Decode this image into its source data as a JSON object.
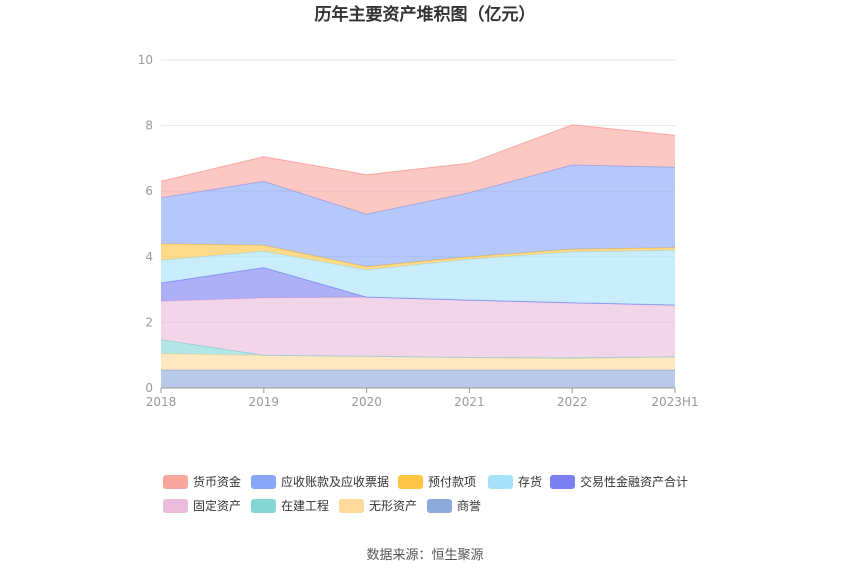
{
  "chart_data": {
    "type": "area",
    "stacked": true,
    "title": "历年主要资产堆积图（亿元）",
    "categories": [
      "2018",
      "2019",
      "2020",
      "2021",
      "2022",
      "2023H1"
    ],
    "ylim": [
      0,
      10
    ],
    "yticks": [
      "0",
      "2",
      "4",
      "6",
      "8",
      "10"
    ],
    "grid": true,
    "legend_position": "bottom",
    "series": [
      {
        "name": "商誉",
        "color": "#8eaadb",
        "values": [
          0.55,
          0.55,
          0.55,
          0.55,
          0.55,
          0.55
        ]
      },
      {
        "name": "无形资产",
        "color": "#fdd99b",
        "values": [
          0.5,
          0.45,
          0.42,
          0.38,
          0.35,
          0.4
        ]
      },
      {
        "name": "在建工程",
        "color": "#85d6d6",
        "values": [
          0.42,
          0.0,
          0.0,
          0.0,
          0.02,
          0.0
        ]
      },
      {
        "name": "固定资产",
        "color": "#ebbcdb",
        "values": [
          1.18,
          1.75,
          1.8,
          1.75,
          1.68,
          1.58
        ]
      },
      {
        "name": "交易性金融资产合计",
        "color": "#7b7ff0",
        "values": [
          0.55,
          0.92,
          0.0,
          0.0,
          0.0,
          0.0
        ]
      },
      {
        "name": "存货",
        "color": "#a8e2fa",
        "values": [
          0.7,
          0.5,
          0.83,
          1.25,
          1.55,
          1.67
        ]
      },
      {
        "name": "预付款项",
        "color": "#fdc543",
        "values": [
          0.5,
          0.18,
          0.1,
          0.07,
          0.08,
          0.08
        ]
      },
      {
        "name": "应收账款及应收票据",
        "color": "#89a7f8",
        "values": [
          1.4,
          1.95,
          1.6,
          1.95,
          2.57,
          2.45
        ]
      },
      {
        "name": "货币资金",
        "color": "#f8a79f",
        "values": [
          0.5,
          0.75,
          1.2,
          0.9,
          1.22,
          0.97
        ]
      }
    ],
    "legend_order": [
      "货币资金",
      "应收账款及应收票据",
      "预付款项",
      "存货",
      "交易性金融资产合计",
      "固定资产",
      "在建工程",
      "无形资产",
      "商誉"
    ]
  },
  "source_text": "数据来源：恒生聚源"
}
